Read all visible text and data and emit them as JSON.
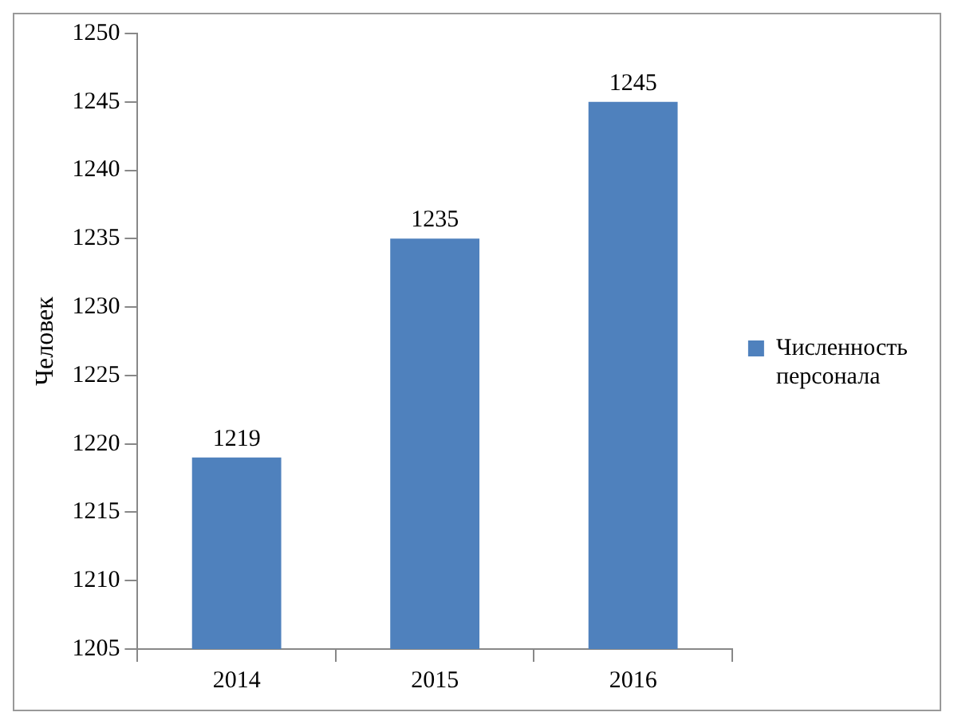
{
  "chart_data": {
    "type": "bar",
    "ylabel": "Человек",
    "categories": [
      "2014",
      "2015",
      "2016"
    ],
    "series": [
      {
        "name": "Численность персонала",
        "color": "#4f81bd",
        "values": [
          1219,
          1235,
          1245
        ]
      }
    ],
    "ylim": [
      1205,
      1250
    ],
    "yticks": [
      1205,
      1210,
      1215,
      1220,
      1225,
      1230,
      1235,
      1240,
      1245,
      1250
    ],
    "data_labels": true,
    "grid": false,
    "legend": "right"
  }
}
